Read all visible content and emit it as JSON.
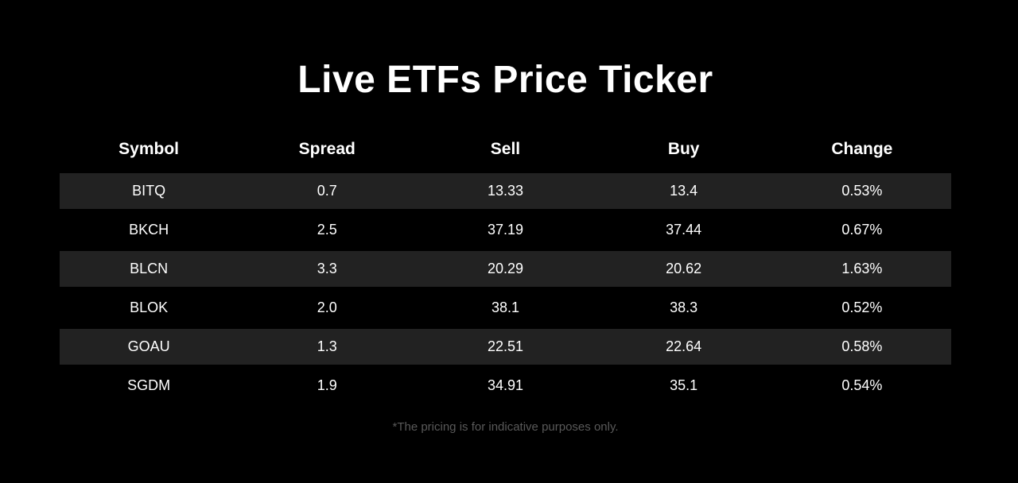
{
  "title": "Live ETFs Price Ticker",
  "colors": {
    "background": "#000000",
    "stripe_row": "#222222",
    "text": "#ffffff",
    "footnote_text": "#595959"
  },
  "table": {
    "columns": [
      "Symbol",
      "Spread",
      "Sell",
      "Buy",
      "Change"
    ],
    "rows": [
      {
        "symbol": "BITQ",
        "spread": "0.7",
        "sell": "13.33",
        "buy": "13.4",
        "change": "0.53%"
      },
      {
        "symbol": "BKCH",
        "spread": "2.5",
        "sell": "37.19",
        "buy": "37.44",
        "change": "0.67%"
      },
      {
        "symbol": "BLCN",
        "spread": "3.3",
        "sell": "20.29",
        "buy": "20.62",
        "change": "1.63%"
      },
      {
        "symbol": "BLOK",
        "spread": "2.0",
        "sell": "38.1",
        "buy": "38.3",
        "change": "0.52%"
      },
      {
        "symbol": "GOAU",
        "spread": "1.3",
        "sell": "22.51",
        "buy": "22.64",
        "change": "0.58%"
      },
      {
        "symbol": "SGDM",
        "spread": "1.9",
        "sell": "34.91",
        "buy": "35.1",
        "change": "0.54%"
      }
    ]
  },
  "footnote": "*The pricing is for indicative purposes only."
}
